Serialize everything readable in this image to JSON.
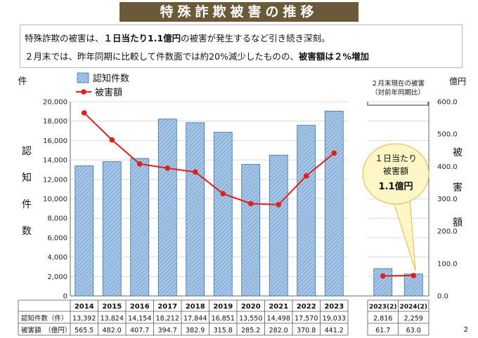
{
  "title": "特殊詐欺被害の推移",
  "summary": {
    "line1_prefix": "特殊詐欺の被害は、",
    "line1_bold": "１日当たり1.1億円",
    "line1_suffix": "の被害が発生するなど引き続き深刻。",
    "line2_prefix": "２月末では、昨年同期に比較して件数面では約20%減少したものの、",
    "line2_bold": "被害額は２%増加"
  },
  "chart_data": {
    "type": "bar",
    "categories": [
      "2014",
      "2015",
      "2016",
      "2017",
      "2018",
      "2019",
      "2020",
      "2021",
      "2022",
      "2023"
    ],
    "side_categories": [
      "2023(2)",
      "2024(2)"
    ],
    "series": [
      {
        "name": "認知件数",
        "type": "bar",
        "axis": "left",
        "values": [
          13392,
          13824,
          14154,
          18212,
          17844,
          16851,
          13550,
          14498,
          17570,
          19033
        ],
        "side_values": [
          2816,
          2259
        ]
      },
      {
        "name": "被害額",
        "type": "line",
        "axis": "right",
        "values": [
          565.5,
          482.0,
          407.7,
          394.7,
          382.9,
          315.8,
          285.2,
          282.0,
          370.8,
          441.2
        ],
        "side_values": [
          61.7,
          63.0
        ]
      }
    ],
    "left_axis": {
      "unit": "件",
      "label": "認知件数",
      "min": 0,
      "max": 20000,
      "step": 2000,
      "ticks": [
        "0",
        "2,000",
        "4,000",
        "6,000",
        "8,000",
        "10,000",
        "12,000",
        "14,000",
        "16,000",
        "18,000",
        "20,000"
      ]
    },
    "right_axis": {
      "unit": "億円",
      "label": "被害額",
      "min": 0,
      "max": 600,
      "step": 100,
      "ticks": [
        "0.0",
        "100.0",
        "200.0",
        "300.0",
        "400.0",
        "500.0",
        "600.0"
      ]
    },
    "side_caption": [
      "２月末現在の被害",
      "（対前年同期比）"
    ],
    "callout": {
      "line1": "１日当たり",
      "line2": "被害額",
      "line3": "1.1億円"
    },
    "legend_position": "top-left",
    "table": {
      "row1_label": "認知件数（件）",
      "row2_label": "被害額　（億円）",
      "row1": [
        "13,392",
        "13,824",
        "14,154",
        "18,212",
        "17,844",
        "16,851",
        "13,550",
        "14,498",
        "17,570",
        "19,033"
      ],
      "row1_side": [
        "2,816",
        "2,259"
      ],
      "row2": [
        "565.5",
        "482.0",
        "407.7",
        "394.7",
        "382.9",
        "315.8",
        "285.2",
        "282.0",
        "370.8",
        "441.2"
      ],
      "row2_side": [
        "61.7",
        "63.0"
      ]
    },
    "colors": {
      "bar": "#8fb6dc",
      "bar_stroke": "#3d6fa3",
      "line": "#e0201c",
      "callout": "#fff6c7",
      "callout_border": "#e0b84a"
    }
  },
  "page_number": "2"
}
